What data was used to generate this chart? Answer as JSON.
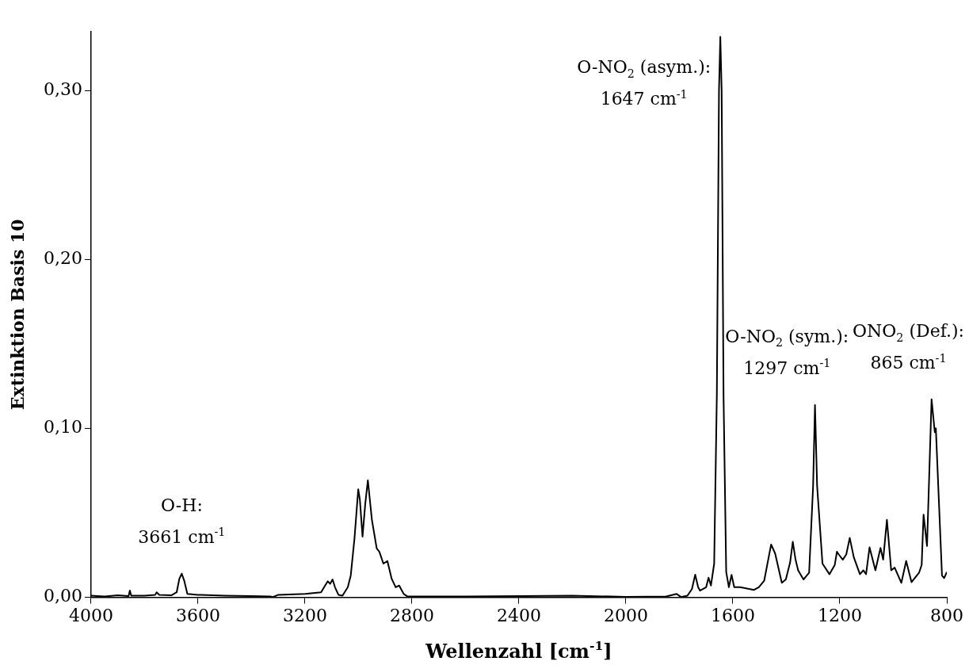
{
  "chart_data": {
    "type": "line",
    "xlabel": "Wellenzahl [cm$^{-1}$]",
    "ylabel": "Extinktion Basis 10",
    "xlim": [
      4000,
      800
    ],
    "xticks": [
      4000,
      3600,
      3200,
      2800,
      2400,
      2000,
      1600,
      1200,
      800
    ],
    "ylim": [
      0,
      0.335
    ],
    "yticks": [
      {
        "value": 0,
        "label": "0,00"
      },
      {
        "value": 0.1,
        "label": "0,10"
      },
      {
        "value": 0.2,
        "label": "0,20"
      },
      {
        "value": 0.3,
        "label": "0,30"
      }
    ],
    "legend": false,
    "marker": "none",
    "line_style": "solid",
    "annotations": [
      {
        "text": "O-H:\n3661 cm$^{-1}$",
        "x": 3661,
        "y": 0.014
      },
      {
        "text": "O-NO$_{2}$ (asym.):\n1647 cm$^{-1}$",
        "x": 1647,
        "y": 0.332
      },
      {
        "text": "O-NO$_{2}$ (sym.):\n1297 cm$^{-1}$",
        "x": 1297,
        "y": 0.114
      },
      {
        "text": "ONO$_{2}$ (Def.):\n865 cm$^{-1}$",
        "x": 865,
        "y": 0.117
      }
    ],
    "series": [
      {
        "color": "#000000",
        "x": [
          4000,
          3950,
          3900,
          3860,
          3855,
          3850,
          3800,
          3760,
          3755,
          3745,
          3700,
          3680,
          3670,
          3661,
          3652,
          3640,
          3600,
          3500,
          3400,
          3330,
          3320,
          3300,
          3200,
          3140,
          3125,
          3115,
          3106,
          3097,
          3088,
          3075,
          3060,
          3040,
          3029,
          3015,
          3001,
          2995,
          2985,
          2975,
          2965,
          2950,
          2932,
          2922,
          2907,
          2892,
          2876,
          2861,
          2848,
          2831,
          2816,
          2600,
          2400,
          2200,
          2000,
          1850,
          1810,
          1794,
          1770,
          1753,
          1741,
          1730,
          1723,
          1700,
          1691,
          1682,
          1670,
          1660,
          1652,
          1647,
          1642,
          1635,
          1625,
          1615,
          1605,
          1595,
          1573,
          1521,
          1503,
          1483,
          1457,
          1442,
          1417,
          1402,
          1386,
          1376,
          1366,
          1356,
          1336,
          1315,
          1300,
          1293,
          1285,
          1265,
          1239,
          1219,
          1211,
          1204,
          1189,
          1176,
          1163,
          1148,
          1125,
          1112,
          1102,
          1089,
          1067,
          1048,
          1038,
          1024,
          1008,
          995,
          970,
          952,
          932,
          904,
          894,
          887,
          874,
          857,
          845,
          841,
          818,
          810,
          800
        ],
        "values": [
          0.001,
          0.0005,
          0.0012,
          0.0008,
          0.004,
          0.001,
          0.001,
          0.0015,
          0.003,
          0.0015,
          0.0012,
          0.003,
          0.011,
          0.014,
          0.01,
          0.002,
          0.0015,
          0.001,
          0.0008,
          0.0005,
          0.0002,
          0.0015,
          0.002,
          0.003,
          0.007,
          0.0095,
          0.008,
          0.0106,
          0.006,
          0.0015,
          0.001,
          0.006,
          0.013,
          0.035,
          0.064,
          0.058,
          0.036,
          0.055,
          0.0693,
          0.046,
          0.029,
          0.027,
          0.02,
          0.0215,
          0.011,
          0.006,
          0.007,
          0.002,
          0.0005,
          0.0005,
          0.0008,
          0.001,
          0.0003,
          0.0005,
          0.002,
          0.0002,
          0.001,
          0.005,
          0.0134,
          0.006,
          0.004,
          0.006,
          0.0117,
          0.007,
          0.02,
          0.12,
          0.3,
          0.332,
          0.3,
          0.12,
          0.015,
          0.006,
          0.0133,
          0.006,
          0.006,
          0.0044,
          0.006,
          0.0098,
          0.0313,
          0.026,
          0.0086,
          0.0106,
          0.0207,
          0.0329,
          0.0226,
          0.016,
          0.0106,
          0.0145,
          0.0659,
          0.1139,
          0.066,
          0.02,
          0.0137,
          0.0192,
          0.027,
          0.0254,
          0.0223,
          0.0254,
          0.0352,
          0.0238,
          0.0137,
          0.016,
          0.0137,
          0.0296,
          0.016,
          0.0293,
          0.0223,
          0.0459,
          0.016,
          0.0176,
          0.0086,
          0.0215,
          0.009,
          0.0145,
          0.0192,
          0.049,
          0.0304,
          0.1173,
          0.0978,
          0.1001,
          0.0129,
          0.0114,
          0.015
        ]
      }
    ]
  }
}
